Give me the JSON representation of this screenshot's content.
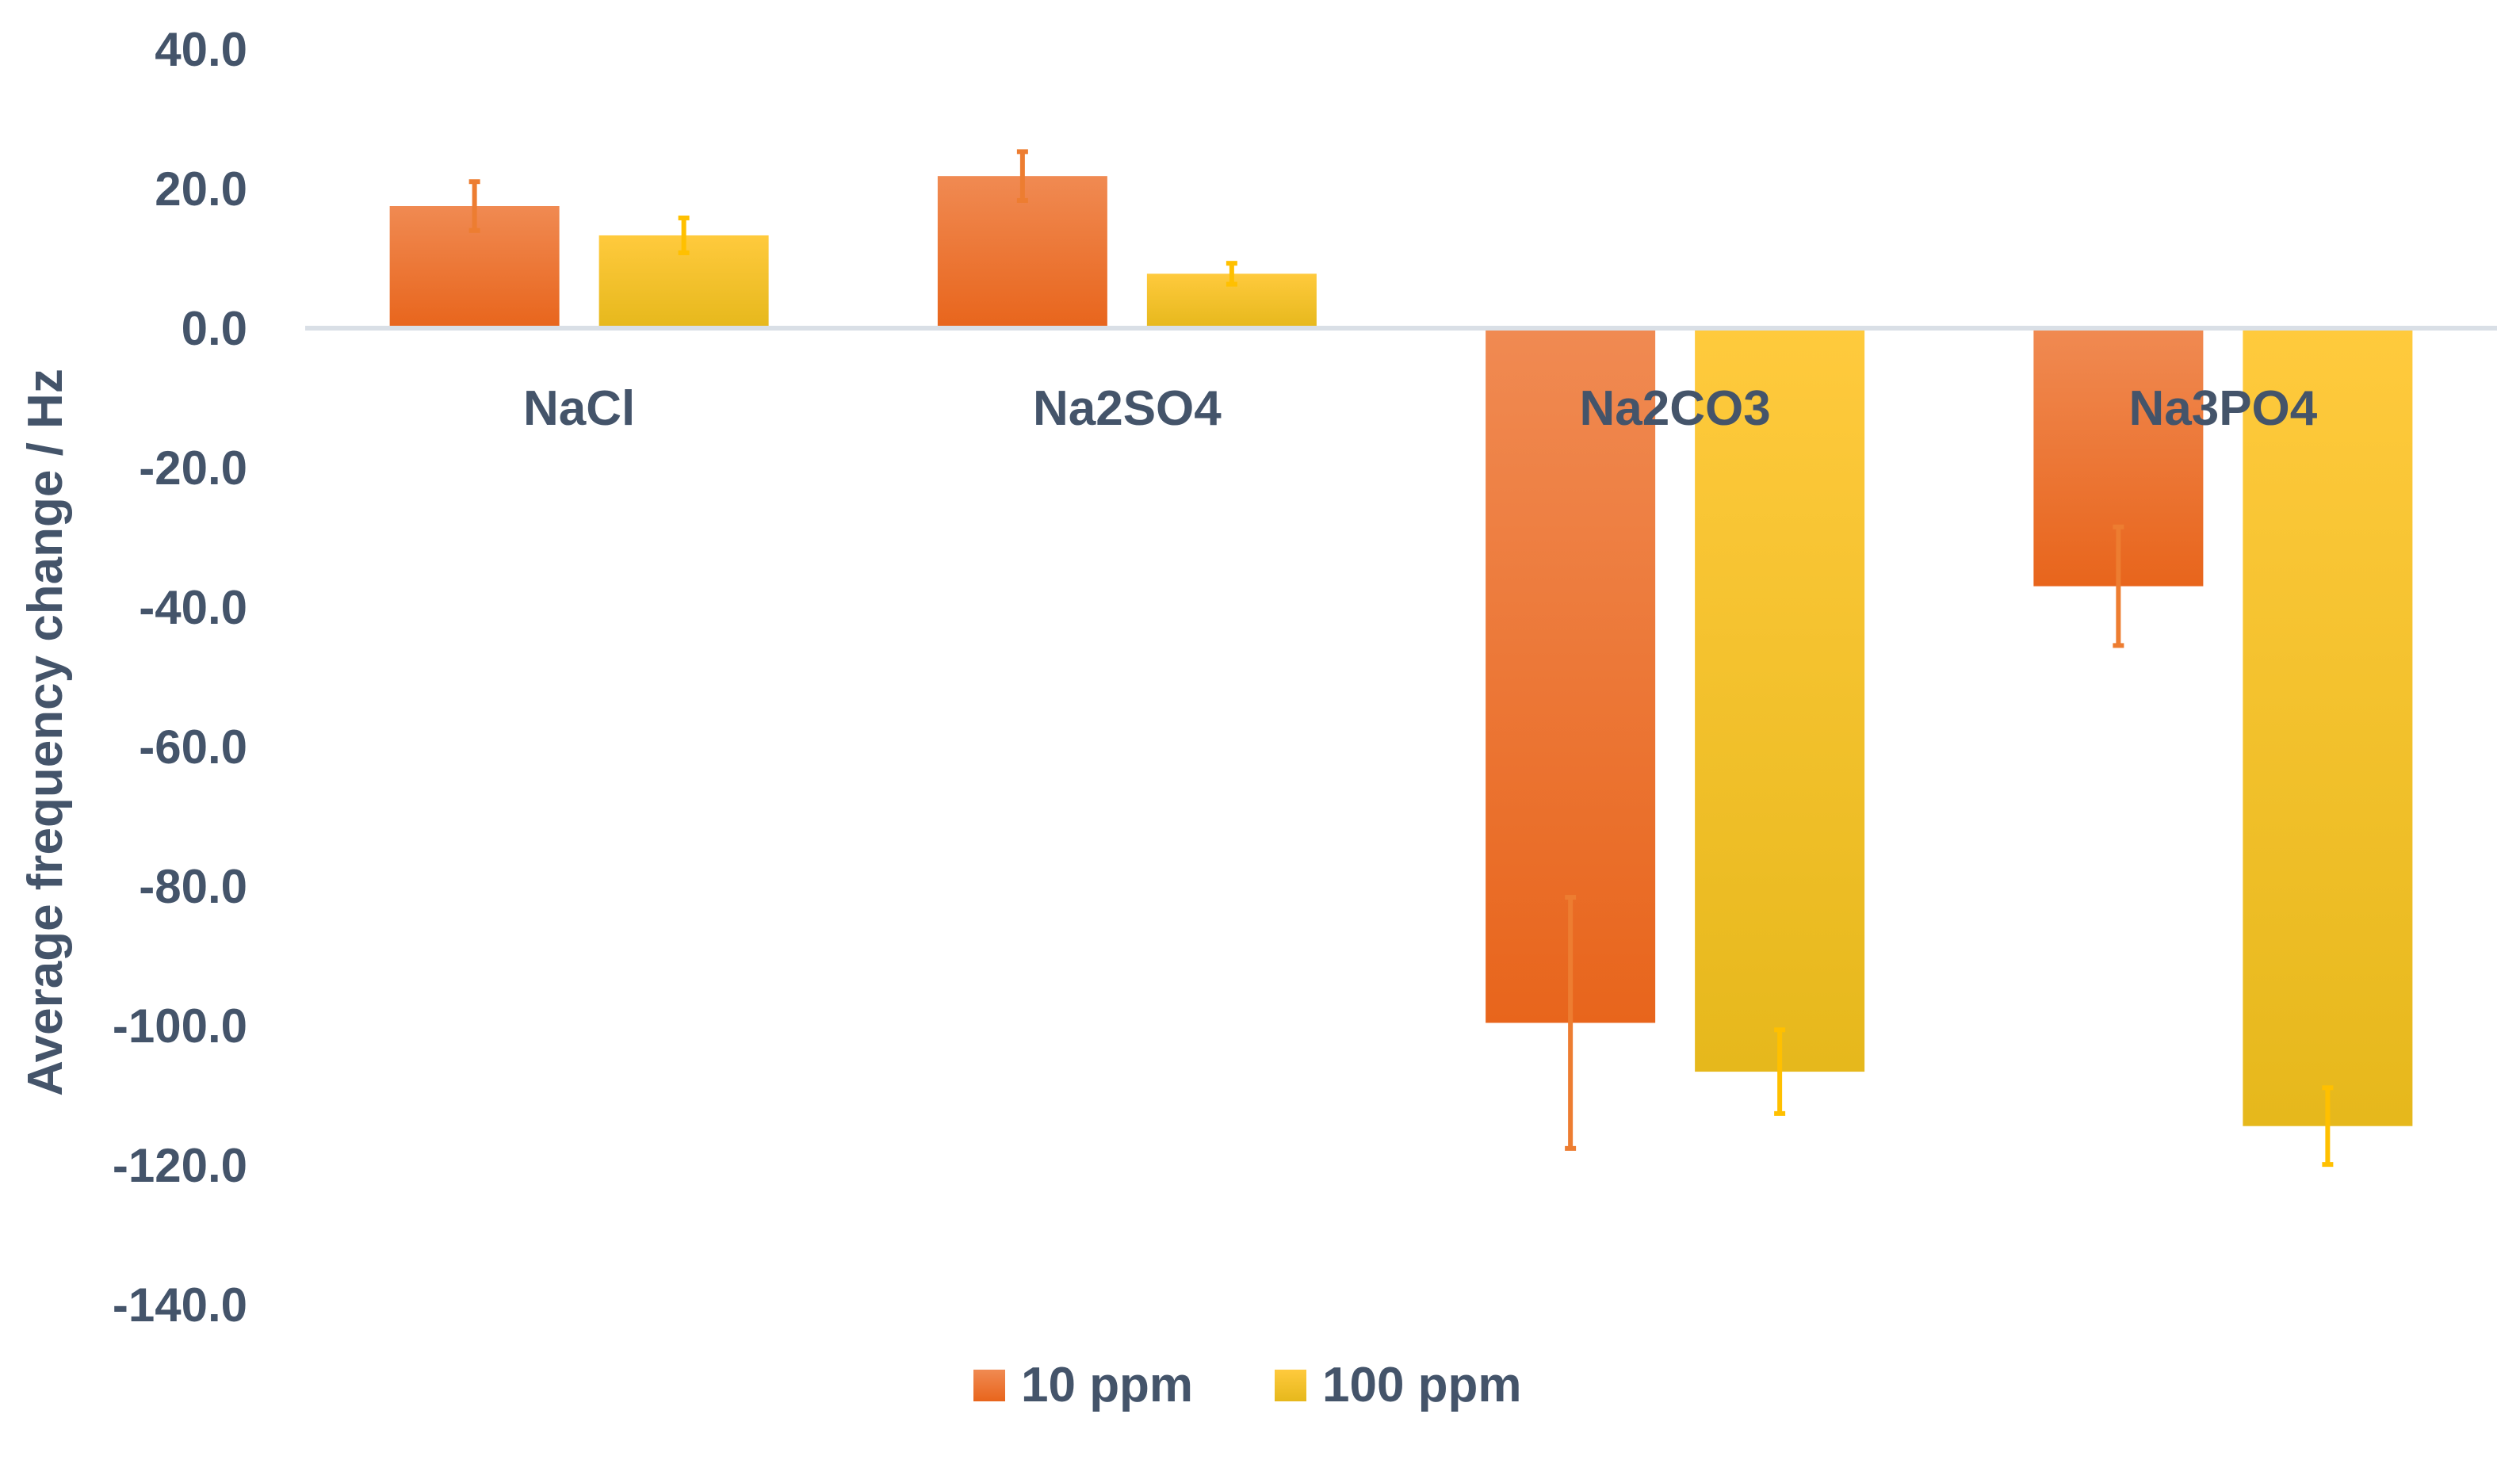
{
  "chart_data": {
    "type": "bar",
    "title": "",
    "xlabel": "",
    "ylabel": "Average frequency change / Hz",
    "categories": [
      "NaCl",
      "Na2SO4",
      "Na2CO3",
      "Na3PO4"
    ],
    "series": [
      {
        "name": "10 ppm",
        "values": [
          17.5,
          21.8,
          -99.6,
          -37.0
        ],
        "errors": [
          3.5,
          3.5,
          18.0,
          8.5
        ]
      },
      {
        "name": "100 ppm",
        "values": [
          13.3,
          7.8,
          -106.6,
          -114.4
        ],
        "errors": [
          2.5,
          1.5,
          6.0,
          5.5
        ]
      }
    ],
    "ylim": [
      -140,
      40
    ],
    "yticks": [
      40,
      20,
      0,
      -20,
      -40,
      -60,
      -80,
      -100,
      -120,
      -140
    ],
    "ytick_labels": [
      "40.0",
      "20.0",
      "0.0",
      "-20.0",
      "-40.0",
      "-60.0",
      "-80.0",
      "-100.0",
      "-120.0",
      "-140.0"
    ],
    "grid": false,
    "legend": "bottom",
    "colors": {
      "10 ppm": {
        "top": "#f08a52",
        "bottom": "#e8651c",
        "error": "#ed7d31"
      },
      "100 ppm": {
        "top": "#ffca3d",
        "bottom": "#e6b81c",
        "error": "#ffc000"
      },
      "axis": "#d9dfe6",
      "text": "#44546a"
    }
  }
}
